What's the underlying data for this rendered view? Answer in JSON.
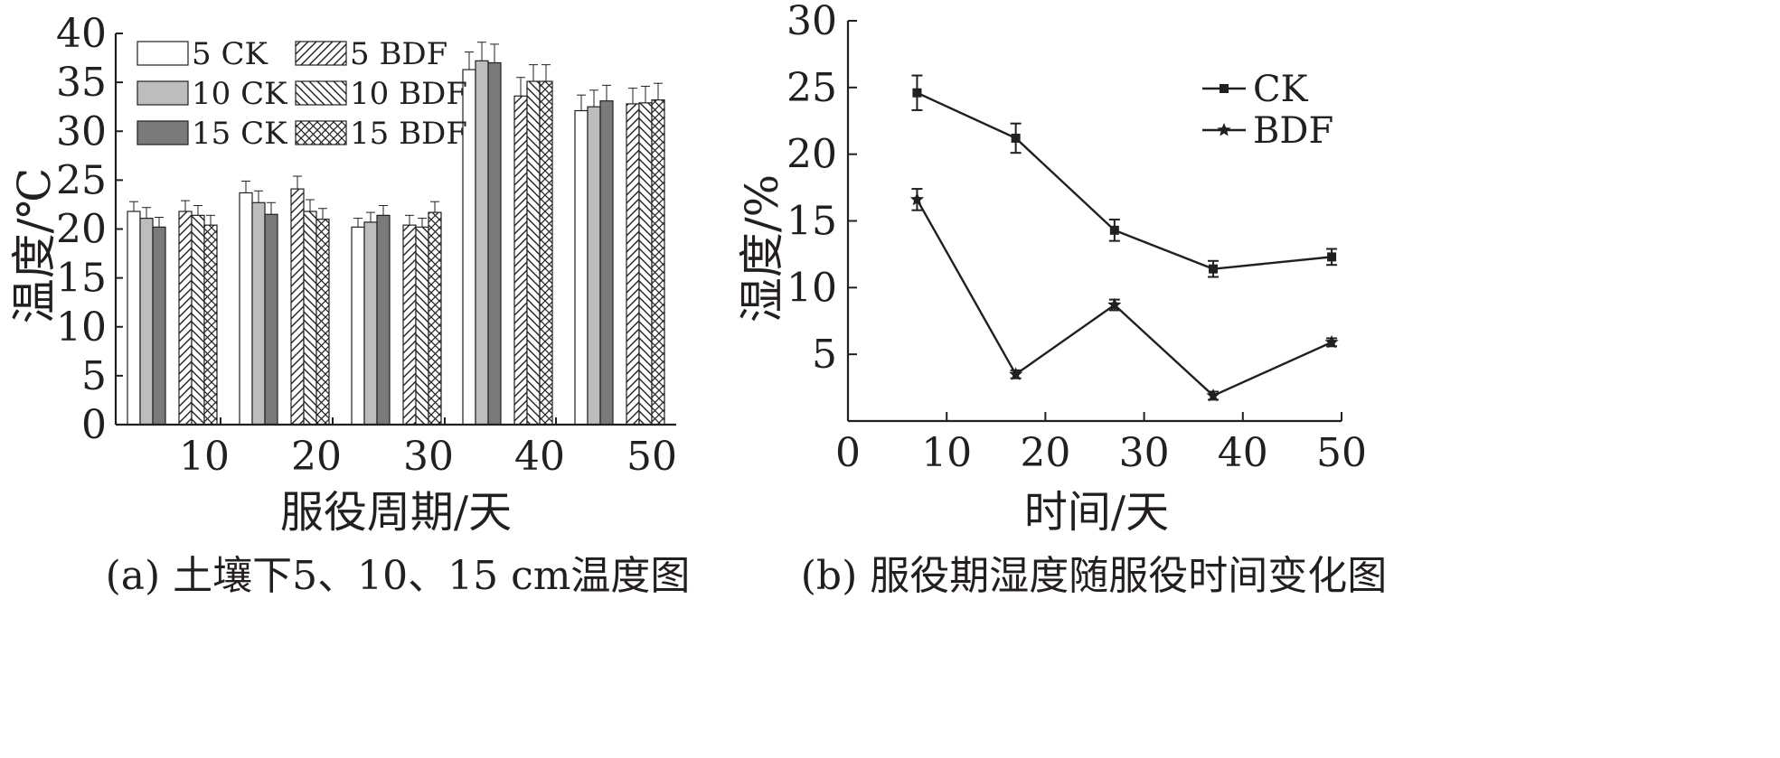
{
  "chart_data": [
    {
      "type": "bar",
      "caption": "(a) 土壤下5、10、15 cm温度图",
      "xlabel": "服役周期/天",
      "ylabel": "温度/℃",
      "ylim": [
        0,
        40
      ],
      "yticks": [
        0,
        5,
        10,
        15,
        20,
        25,
        30,
        35,
        40
      ],
      "categories": [
        "10",
        "20",
        "30",
        "40",
        "50"
      ],
      "grid": false,
      "legend_position": "top-left",
      "series": [
        {
          "name": "5 CK",
          "group": "CK",
          "pattern": "white",
          "values": [
            21.8,
            23.7,
            20.2,
            36.3,
            32.1
          ],
          "errors": [
            1.0,
            1.2,
            0.9,
            1.8,
            1.6
          ]
        },
        {
          "name": "10 CK",
          "group": "CK",
          "pattern": "light",
          "values": [
            21.1,
            22.7,
            20.7,
            37.2,
            32.5
          ],
          "errors": [
            1.1,
            1.2,
            1.0,
            1.9,
            1.7
          ]
        },
        {
          "name": "15 CK",
          "group": "CK",
          "pattern": "dark",
          "values": [
            20.2,
            21.5,
            21.4,
            37.0,
            33.1
          ],
          "errors": [
            1.0,
            1.2,
            1.0,
            1.9,
            1.6
          ]
        },
        {
          "name": "5 BDF",
          "group": "BDF",
          "pattern": "hatch-right",
          "values": [
            21.8,
            24.1,
            20.4,
            33.6,
            32.8
          ],
          "errors": [
            1.1,
            1.3,
            1.0,
            1.9,
            1.6
          ]
        },
        {
          "name": "10 BDF",
          "group": "BDF",
          "pattern": "hatch-left",
          "values": [
            21.4,
            21.8,
            20.2,
            35.1,
            32.9
          ],
          "errors": [
            1.0,
            1.2,
            0.9,
            1.7,
            1.7
          ]
        },
        {
          "name": "15 BDF",
          "group": "BDF",
          "pattern": "cross",
          "values": [
            20.4,
            21.0,
            21.7,
            35.1,
            33.2
          ],
          "errors": [
            1.0,
            1.1,
            1.1,
            1.7,
            1.7
          ]
        }
      ]
    },
    {
      "type": "line",
      "caption": "(b) 服役期湿度随服役时间变化图",
      "xlabel": "时间/天",
      "ylabel": "湿度/%",
      "xlim": [
        0,
        50
      ],
      "ylim": [
        0,
        30
      ],
      "xticks": [
        0,
        10,
        20,
        30,
        40,
        50
      ],
      "yticks": [
        5,
        10,
        15,
        20,
        25,
        30
      ],
      "grid": false,
      "legend_position": "top-right",
      "series": [
        {
          "name": "CK",
          "marker": "square",
          "x": [
            7,
            17,
            27,
            37,
            49
          ],
          "y": [
            24.6,
            21.2,
            14.3,
            11.4,
            12.3
          ],
          "errors": [
            1.3,
            1.1,
            0.8,
            0.6,
            0.6
          ]
        },
        {
          "name": "BDF",
          "marker": "star",
          "x": [
            7,
            17,
            27,
            37,
            49
          ],
          "y": [
            16.6,
            3.5,
            8.7,
            1.9,
            5.9
          ],
          "errors": [
            0.8,
            0.3,
            0.4,
            0.3,
            0.3
          ]
        }
      ]
    }
  ],
  "colors": {
    "ink": "#231f20",
    "bar_white": "#ffffff",
    "bar_light": "#bdbdbd",
    "bar_dark": "#7a7a7a"
  }
}
